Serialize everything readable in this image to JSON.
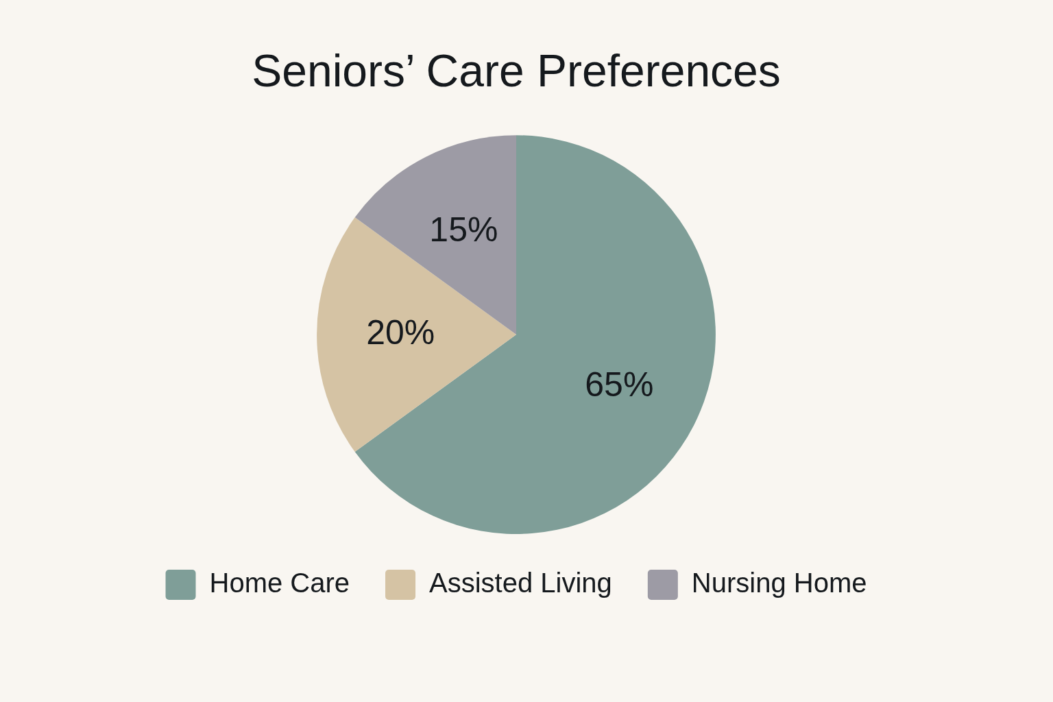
{
  "chart_data": {
    "type": "pie",
    "title": "Seniors’ Care Preferences",
    "categories": [
      "Home Care",
      "Assisted Living",
      "Nursing Home"
    ],
    "values": [
      65,
      20,
      15
    ],
    "colors": [
      "#7f9e98",
      "#d5c3a4",
      "#9d9ba5"
    ],
    "value_labels": [
      "65%",
      "20%",
      "15%"
    ],
    "legend": "bottom"
  }
}
